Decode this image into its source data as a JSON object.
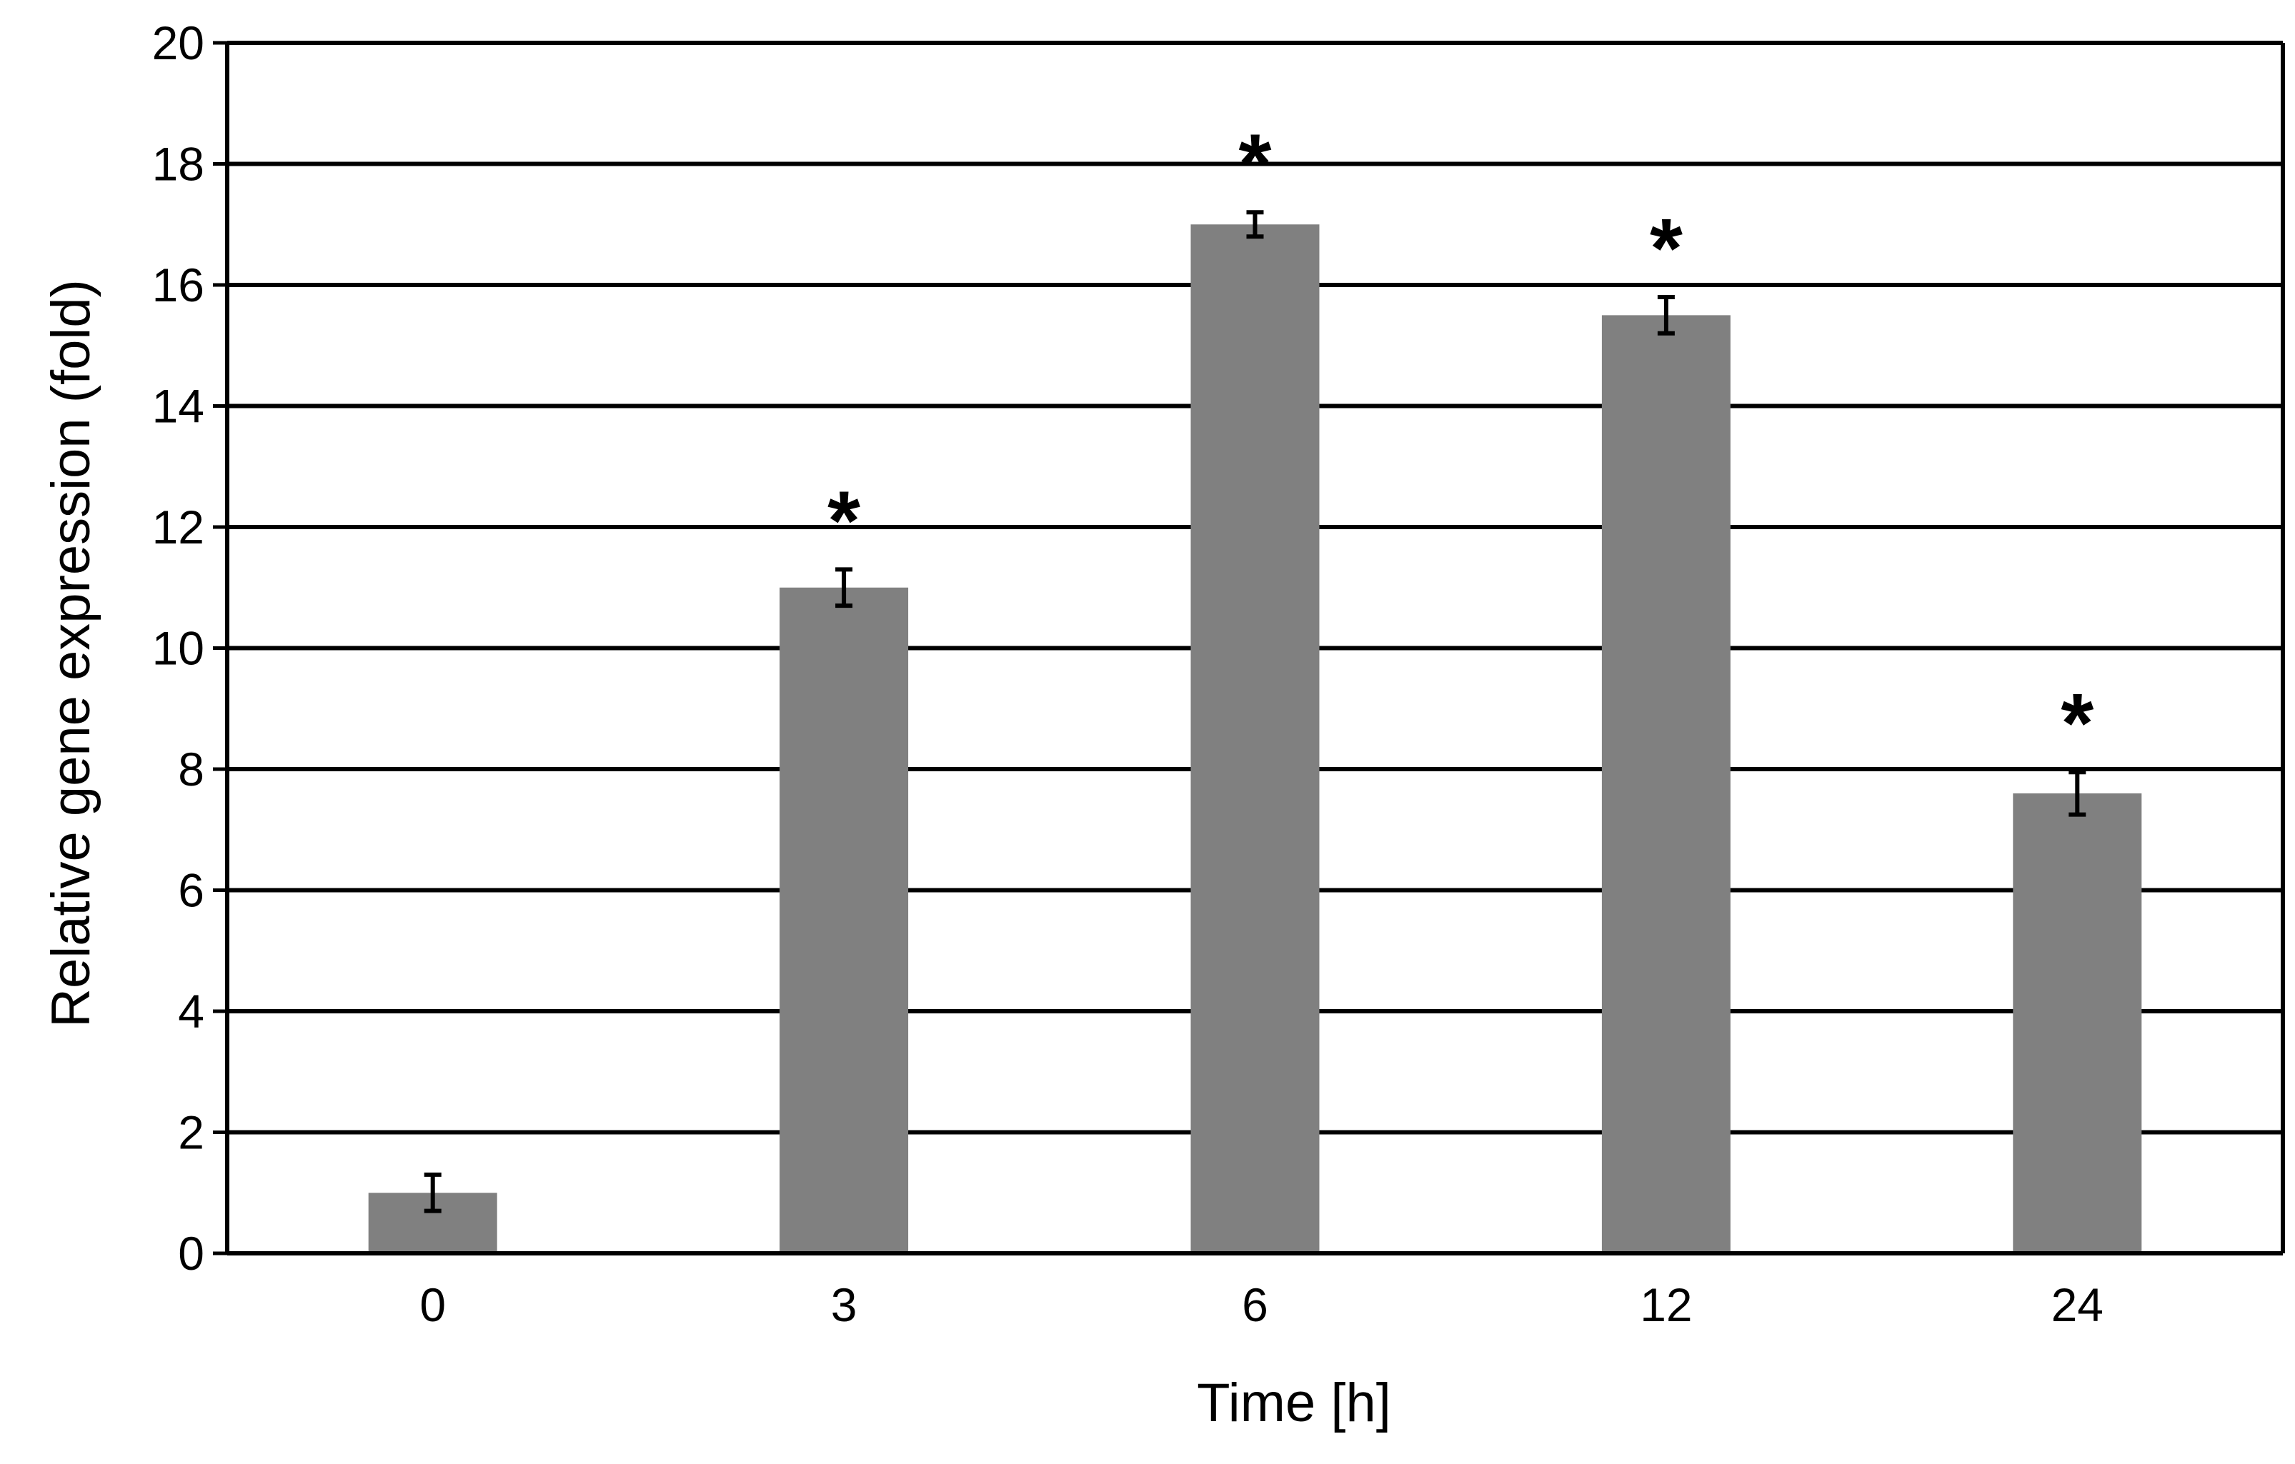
{
  "chart_data": {
    "type": "bar",
    "title": "",
    "xlabel": "Time [h]",
    "ylabel": "Relative gene expression (fold)",
    "categories": [
      "0",
      "3",
      "6",
      "12",
      "24"
    ],
    "values": [
      1.0,
      11.0,
      17.0,
      15.5,
      7.6
    ],
    "error": [
      0.3,
      0.3,
      0.2,
      0.3,
      0.35
    ],
    "significance": [
      "",
      "*",
      "*",
      "*",
      "*"
    ],
    "ylim": [
      0,
      20
    ],
    "yticks": [
      0,
      2,
      4,
      6,
      8,
      10,
      12,
      14,
      16,
      18,
      20
    ],
    "grid": true,
    "legend": "none",
    "colors": {
      "bar": "#808080",
      "grid": "#000000",
      "axis": "#000000",
      "error_bar": "#000000"
    }
  }
}
